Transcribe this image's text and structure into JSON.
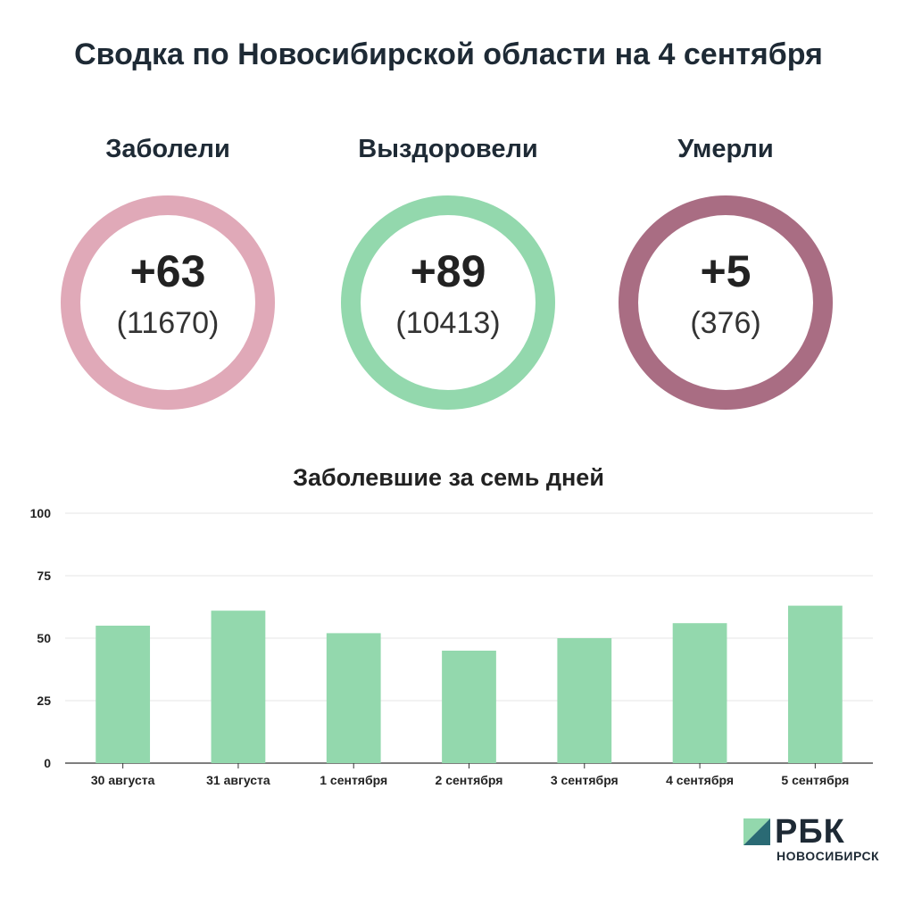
{
  "title": "Сводка по Новосибирской области на 4 сентября",
  "stats": [
    {
      "label": "Заболели",
      "delta": "+63",
      "total": "(11670)",
      "color": "#e0a9b8"
    },
    {
      "label": "Выздоровели",
      "delta": "+89",
      "total": "(10413)",
      "color": "#93d8ad"
    },
    {
      "label": "Умерли",
      "delta": "+5",
      "total": "(376)",
      "color": "#a96d83"
    }
  ],
  "logo": {
    "name": "РБК",
    "city": "НОВОСИБИРСК"
  },
  "chart_data": {
    "type": "bar",
    "title": "Заболевшие за семь дней",
    "categories": [
      "30 августа",
      "31 августа",
      "1 сентября",
      "2 сентября",
      "3 сентября",
      "4 сентября",
      "5 сентября"
    ],
    "values": [
      55,
      61,
      52,
      45,
      50,
      56,
      63
    ],
    "ylim": [
      0,
      100
    ],
    "yticks": [
      0,
      25,
      50,
      75,
      100
    ],
    "xlabel": "",
    "ylabel": "",
    "grid": true,
    "bar_color": "#93d8ad"
  }
}
